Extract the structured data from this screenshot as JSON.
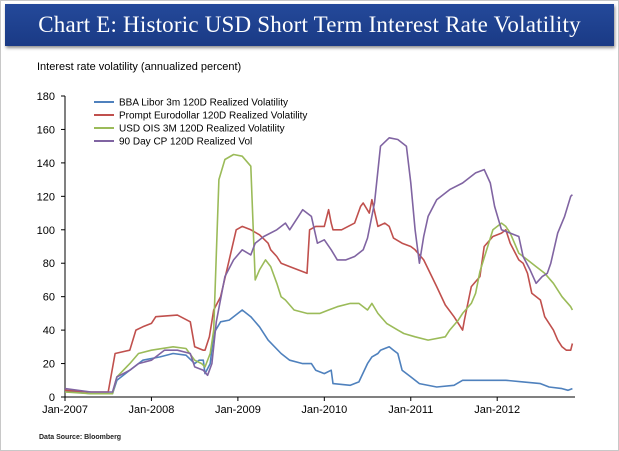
{
  "title": "Chart E: Historic USD Short Term Interest Rate Volatility",
  "source_note": "Data Source: Bloomberg",
  "chart_data": {
    "type": "line",
    "title": "Chart E: Historic USD Short Term Interest Rate Volatility",
    "xlabel": "",
    "ylabel": "Interest rate volatility (annualized percent)",
    "xlim": [
      2007.0,
      2012.9
    ],
    "ylim": [
      0,
      180
    ],
    "yticks": [
      0,
      20,
      40,
      60,
      80,
      100,
      120,
      140,
      160,
      180
    ],
    "xticks": [
      {
        "value": 2007.0,
        "label": "Jan-2007"
      },
      {
        "value": 2008.0,
        "label": "Jan-2008"
      },
      {
        "value": 2009.0,
        "label": "Jan-2009"
      },
      {
        "value": 2010.0,
        "label": "Jan-2010"
      },
      {
        "value": 2011.0,
        "label": "Jan-2011"
      },
      {
        "value": 2012.0,
        "label": "Jan-2012"
      }
    ],
    "grid": false,
    "legend": "top-left",
    "series": [
      {
        "name": "BBA Libor 3m 120D Realized Volatility",
        "color": "#4f81bd",
        "points": [
          [
            2007.0,
            4
          ],
          [
            2007.1,
            3
          ],
          [
            2007.3,
            2
          ],
          [
            2007.55,
            2
          ],
          [
            2007.6,
            10
          ],
          [
            2007.75,
            16
          ],
          [
            2007.9,
            22
          ],
          [
            2008.1,
            24
          ],
          [
            2008.25,
            26
          ],
          [
            2008.4,
            25
          ],
          [
            2008.5,
            20
          ],
          [
            2008.55,
            22
          ],
          [
            2008.6,
            22
          ],
          [
            2008.62,
            14
          ],
          [
            2008.68,
            20
          ],
          [
            2008.72,
            38
          ],
          [
            2008.8,
            45
          ],
          [
            2008.9,
            46
          ],
          [
            2009.0,
            50
          ],
          [
            2009.05,
            52
          ],
          [
            2009.15,
            48
          ],
          [
            2009.25,
            42
          ],
          [
            2009.35,
            34
          ],
          [
            2009.5,
            26
          ],
          [
            2009.6,
            22
          ],
          [
            2009.75,
            20
          ],
          [
            2009.85,
            20
          ],
          [
            2009.9,
            16
          ],
          [
            2010.0,
            14
          ],
          [
            2010.08,
            16
          ],
          [
            2010.1,
            8
          ],
          [
            2010.3,
            7
          ],
          [
            2010.4,
            9
          ],
          [
            2010.5,
            20
          ],
          [
            2010.55,
            24
          ],
          [
            2010.62,
            26
          ],
          [
            2010.65,
            28
          ],
          [
            2010.75,
            30
          ],
          [
            2010.8,
            28
          ],
          [
            2010.85,
            26
          ],
          [
            2010.9,
            16
          ],
          [
            2011.0,
            12
          ],
          [
            2011.1,
            8
          ],
          [
            2011.3,
            6
          ],
          [
            2011.5,
            7
          ],
          [
            2011.6,
            10
          ],
          [
            2011.7,
            10
          ],
          [
            2011.9,
            10
          ],
          [
            2012.1,
            10
          ],
          [
            2012.3,
            9
          ],
          [
            2012.5,
            8
          ],
          [
            2012.6,
            6
          ],
          [
            2012.75,
            5
          ],
          [
            2012.82,
            4
          ],
          [
            2012.87,
            5
          ]
        ]
      },
      {
        "name": "Prompt Eurodollar 120D Realized Volatility",
        "color": "#c0504d",
        "points": [
          [
            2007.0,
            4
          ],
          [
            2007.3,
            3
          ],
          [
            2007.5,
            3
          ],
          [
            2007.58,
            26
          ],
          [
            2007.75,
            28
          ],
          [
            2007.82,
            40
          ],
          [
            2007.9,
            42
          ],
          [
            2008.0,
            44
          ],
          [
            2008.05,
            48
          ],
          [
            2008.3,
            49
          ],
          [
            2008.45,
            45
          ],
          [
            2008.5,
            30
          ],
          [
            2008.6,
            28
          ],
          [
            2008.62,
            28
          ],
          [
            2008.67,
            36
          ],
          [
            2008.72,
            52
          ],
          [
            2008.8,
            60
          ],
          [
            2008.9,
            82
          ],
          [
            2008.98,
            100
          ],
          [
            2009.05,
            102
          ],
          [
            2009.15,
            100
          ],
          [
            2009.25,
            97
          ],
          [
            2009.35,
            92
          ],
          [
            2009.38,
            88
          ],
          [
            2009.45,
            84
          ],
          [
            2009.5,
            80
          ],
          [
            2009.6,
            78
          ],
          [
            2009.8,
            74
          ],
          [
            2009.83,
            100
          ],
          [
            2009.9,
            102
          ],
          [
            2010.0,
            102
          ],
          [
            2010.05,
            112
          ],
          [
            2010.08,
            104
          ],
          [
            2010.1,
            100
          ],
          [
            2010.2,
            100
          ],
          [
            2010.35,
            104
          ],
          [
            2010.42,
            114
          ],
          [
            2010.45,
            116
          ],
          [
            2010.52,
            110
          ],
          [
            2010.55,
            118
          ],
          [
            2010.62,
            102
          ],
          [
            2010.7,
            104
          ],
          [
            2010.75,
            102
          ],
          [
            2010.8,
            95
          ],
          [
            2010.9,
            92
          ],
          [
            2011.0,
            90
          ],
          [
            2011.05,
            88
          ],
          [
            2011.15,
            82
          ],
          [
            2011.3,
            66
          ],
          [
            2011.4,
            55
          ],
          [
            2011.5,
            48
          ],
          [
            2011.6,
            40
          ],
          [
            2011.62,
            46
          ],
          [
            2011.7,
            66
          ],
          [
            2011.8,
            72
          ],
          [
            2011.85,
            90
          ],
          [
            2011.95,
            96
          ],
          [
            2012.05,
            98
          ],
          [
            2012.1,
            100
          ],
          [
            2012.15,
            92
          ],
          [
            2012.25,
            82
          ],
          [
            2012.3,
            80
          ],
          [
            2012.35,
            74
          ],
          [
            2012.4,
            62
          ],
          [
            2012.5,
            58
          ],
          [
            2012.55,
            48
          ],
          [
            2012.65,
            40
          ],
          [
            2012.7,
            34
          ],
          [
            2012.75,
            30
          ],
          [
            2012.8,
            28
          ],
          [
            2012.85,
            28
          ],
          [
            2012.87,
            32
          ]
        ]
      },
      {
        "name": "USD OIS 3M 120D Realized Volatility",
        "color": "#9bbb59",
        "points": [
          [
            2007.0,
            3
          ],
          [
            2007.3,
            2
          ],
          [
            2007.55,
            2
          ],
          [
            2007.6,
            12
          ],
          [
            2007.75,
            20
          ],
          [
            2007.85,
            26
          ],
          [
            2008.0,
            28
          ],
          [
            2008.25,
            30
          ],
          [
            2008.4,
            29
          ],
          [
            2008.5,
            22
          ],
          [
            2008.58,
            20
          ],
          [
            2008.62,
            18
          ],
          [
            2008.68,
            26
          ],
          [
            2008.72,
            40
          ],
          [
            2008.78,
            130
          ],
          [
            2008.85,
            142
          ],
          [
            2008.95,
            145
          ],
          [
            2009.05,
            144
          ],
          [
            2009.15,
            138
          ],
          [
            2009.2,
            70
          ],
          [
            2009.25,
            76
          ],
          [
            2009.32,
            82
          ],
          [
            2009.38,
            78
          ],
          [
            2009.45,
            68
          ],
          [
            2009.5,
            60
          ],
          [
            2009.55,
            58
          ],
          [
            2009.65,
            52
          ],
          [
            2009.8,
            50
          ],
          [
            2009.95,
            50
          ],
          [
            2010.05,
            52
          ],
          [
            2010.15,
            54
          ],
          [
            2010.3,
            56
          ],
          [
            2010.4,
            56
          ],
          [
            2010.5,
            52
          ],
          [
            2010.55,
            56
          ],
          [
            2010.62,
            50
          ],
          [
            2010.72,
            44
          ],
          [
            2010.85,
            40
          ],
          [
            2010.92,
            38
          ],
          [
            2011.05,
            36
          ],
          [
            2011.2,
            34
          ],
          [
            2011.4,
            36
          ],
          [
            2011.45,
            40
          ],
          [
            2011.55,
            46
          ],
          [
            2011.6,
            50
          ],
          [
            2011.7,
            56
          ],
          [
            2011.75,
            62
          ],
          [
            2011.8,
            75
          ],
          [
            2011.95,
            100
          ],
          [
            2012.05,
            104
          ],
          [
            2012.1,
            102
          ],
          [
            2012.15,
            98
          ],
          [
            2012.25,
            86
          ],
          [
            2012.35,
            82
          ],
          [
            2012.45,
            78
          ],
          [
            2012.55,
            74
          ],
          [
            2012.65,
            68
          ],
          [
            2012.75,
            60
          ],
          [
            2012.85,
            54
          ],
          [
            2012.87,
            52
          ]
        ]
      },
      {
        "name": "90 Day CP 120D Realized Vol",
        "color": "#8064a2",
        "points": [
          [
            2007.0,
            5
          ],
          [
            2007.3,
            3
          ],
          [
            2007.55,
            3
          ],
          [
            2007.6,
            12
          ],
          [
            2007.75,
            16
          ],
          [
            2007.85,
            20
          ],
          [
            2008.0,
            22
          ],
          [
            2008.15,
            28
          ],
          [
            2008.3,
            28
          ],
          [
            2008.45,
            26
          ],
          [
            2008.5,
            18
          ],
          [
            2008.6,
            16
          ],
          [
            2008.65,
            13
          ],
          [
            2008.7,
            20
          ],
          [
            2008.75,
            45
          ],
          [
            2008.85,
            72
          ],
          [
            2008.95,
            82
          ],
          [
            2009.05,
            88
          ],
          [
            2009.15,
            85
          ],
          [
            2009.2,
            92
          ],
          [
            2009.3,
            96
          ],
          [
            2009.45,
            100
          ],
          [
            2009.55,
            104
          ],
          [
            2009.6,
            100
          ],
          [
            2009.7,
            108
          ],
          [
            2009.75,
            112
          ],
          [
            2009.85,
            108
          ],
          [
            2009.92,
            92
          ],
          [
            2010.0,
            94
          ],
          [
            2010.08,
            88
          ],
          [
            2010.15,
            82
          ],
          [
            2010.25,
            82
          ],
          [
            2010.35,
            84
          ],
          [
            2010.45,
            88
          ],
          [
            2010.5,
            95
          ],
          [
            2010.58,
            116
          ],
          [
            2010.65,
            150
          ],
          [
            2010.75,
            155
          ],
          [
            2010.85,
            154
          ],
          [
            2010.95,
            150
          ],
          [
            2011.0,
            128
          ],
          [
            2011.05,
            100
          ],
          [
            2011.1,
            80
          ],
          [
            2011.15,
            96
          ],
          [
            2011.2,
            108
          ],
          [
            2011.3,
            118
          ],
          [
            2011.45,
            124
          ],
          [
            2011.6,
            128
          ],
          [
            2011.75,
            134
          ],
          [
            2011.85,
            136
          ],
          [
            2011.92,
            128
          ],
          [
            2011.97,
            114
          ],
          [
            2012.05,
            100
          ],
          [
            2012.15,
            98
          ],
          [
            2012.25,
            96
          ],
          [
            2012.3,
            84
          ],
          [
            2012.38,
            76
          ],
          [
            2012.45,
            68
          ],
          [
            2012.52,
            72
          ],
          [
            2012.58,
            74
          ],
          [
            2012.62,
            80
          ],
          [
            2012.7,
            98
          ],
          [
            2012.78,
            108
          ],
          [
            2012.85,
            120
          ],
          [
            2012.87,
            121
          ]
        ]
      }
    ]
  }
}
